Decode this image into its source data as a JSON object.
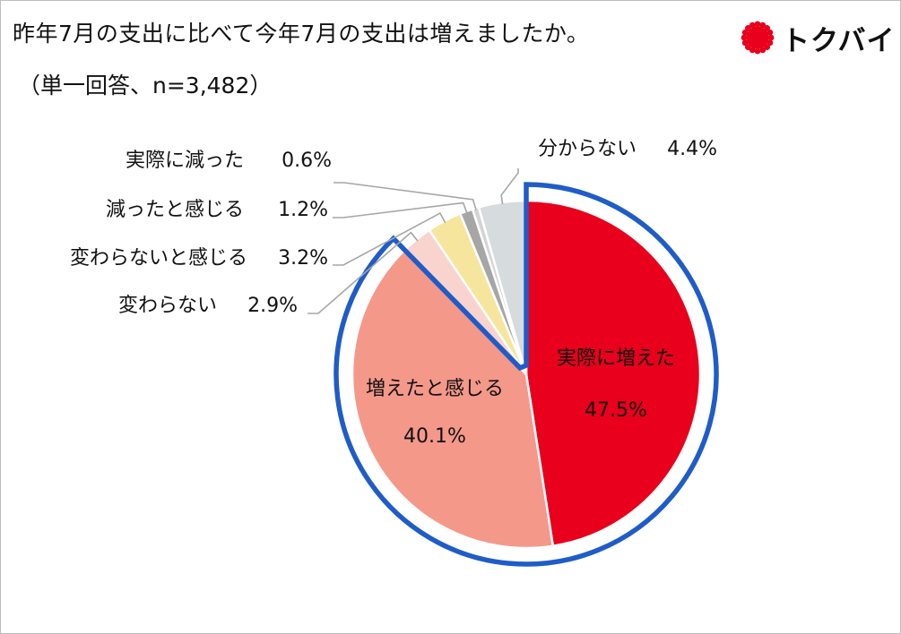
{
  "title": "昨年7月の支出に比べて今年7月の支出は増えましたか。",
  "subtitle": "（単一回答、n=3,482）",
  "logo": {
    "text": "トクバイ",
    "icon": "red-sun-icon",
    "color": "#e8001c"
  },
  "chart_data": {
    "type": "pie",
    "title": "昨年7月の支出に比べて今年7月の支出は増えましたか。",
    "subtitle": "（単一回答、n=3,482）",
    "start": "12 o'clock",
    "direction": "clockwise",
    "slices": [
      {
        "label": "実際に増えた",
        "value": 47.5,
        "value_label": "47.5%",
        "color": "#e8001c",
        "label_position": "inside"
      },
      {
        "label": "増えたと感じる",
        "value": 40.1,
        "value_label": "40.1%",
        "color": "#f4988a",
        "label_position": "inside"
      },
      {
        "label": "変わらない",
        "value": 2.9,
        "value_label": "2.9%",
        "color": "#f9d3cd",
        "label_position": "outside"
      },
      {
        "label": "変わらないと感じる",
        "value": 3.2,
        "value_label": "3.2%",
        "color": "#f6e59c",
        "label_position": "outside"
      },
      {
        "label": "減ったと感じる",
        "value": 1.2,
        "value_label": "1.2%",
        "color": "#a6a6a6",
        "label_position": "outside"
      },
      {
        "label": "実際に減った",
        "value": 0.6,
        "value_label": "0.6%",
        "color": "#d4d4d4",
        "label_position": "outside"
      },
      {
        "label": "分からない",
        "value": 4.4,
        "value_label": "4.4%",
        "color": "#d6dbdd",
        "label_position": "outside"
      }
    ],
    "highlight": {
      "slices": [
        "実際に増えた",
        "増えたと感じる"
      ],
      "outline_color": "#1f5cc8"
    }
  }
}
